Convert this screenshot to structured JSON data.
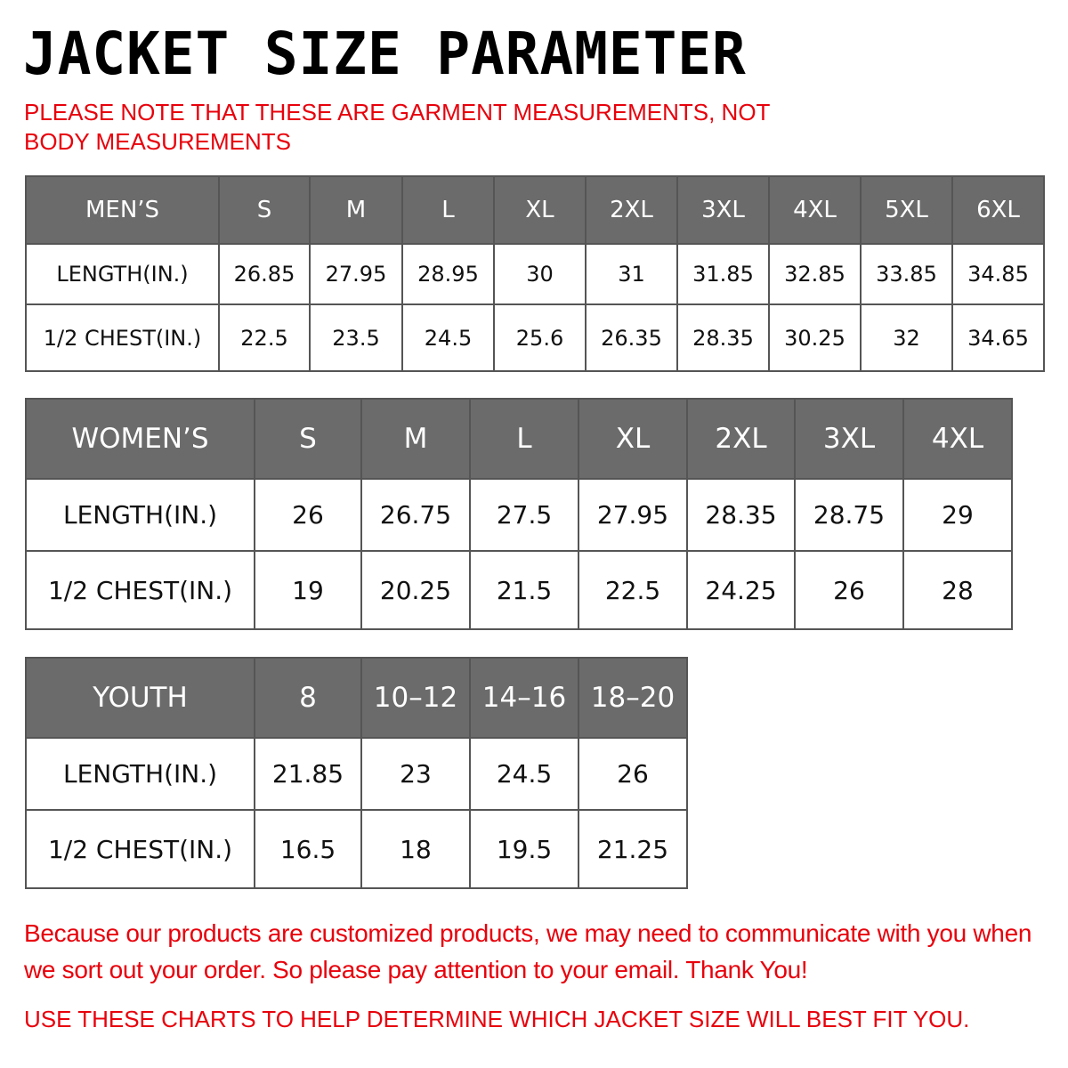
{
  "title": "JACKET SIZE PARAMETER",
  "note": "PLEASE NOTE THAT THESE ARE GARMENT MEASUREMENTS, NOT BODY MEASUREMENTS",
  "colors": {
    "header_bg": "#6b6b6b",
    "accent_red": "#e8000b"
  },
  "tables": [
    {
      "header": [
        "MEN’S",
        "S",
        "M",
        "L",
        "XL",
        "2XL",
        "3XL",
        "4XL",
        "5XL",
        "6XL"
      ],
      "rows": [
        [
          "LENGTH(IN.)",
          "26.85",
          "27.95",
          "28.95",
          "30",
          "31",
          "31.85",
          "32.85",
          "33.85",
          "34.85"
        ],
        [
          "1/2 CHEST(IN.)",
          "22.5",
          "23.5",
          "24.5",
          "25.6",
          "26.35",
          "28.35",
          "30.25",
          "32",
          "34.65"
        ]
      ]
    },
    {
      "header": [
        "WOMEN’S",
        "S",
        "M",
        "L",
        "XL",
        "2XL",
        "3XL",
        "4XL"
      ],
      "rows": [
        [
          "LENGTH(IN.)",
          "26",
          "26.75",
          "27.5",
          "27.95",
          "28.35",
          "28.75",
          "29"
        ],
        [
          "1/2 CHEST(IN.)",
          "19",
          "20.25",
          "21.5",
          "22.5",
          "24.25",
          "26",
          "28"
        ]
      ]
    },
    {
      "header": [
        "YOUTH",
        "8",
        "10–12",
        "14–16",
        "18–20"
      ],
      "rows": [
        [
          "LENGTH(IN.)",
          "21.85",
          "23",
          "24.5",
          "26"
        ],
        [
          "1/2 CHEST(IN.)",
          "16.5",
          "18",
          "19.5",
          "21.25"
        ]
      ]
    }
  ],
  "footer": {
    "message": "Because our products are customized products, we may need to communicate with you when we sort out your order. So please pay attention to your email. Thank You!",
    "advice": "USE THESE CHARTS TO HELP DETERMINE WHICH JACKET SIZE WILL BEST FIT YOU."
  }
}
